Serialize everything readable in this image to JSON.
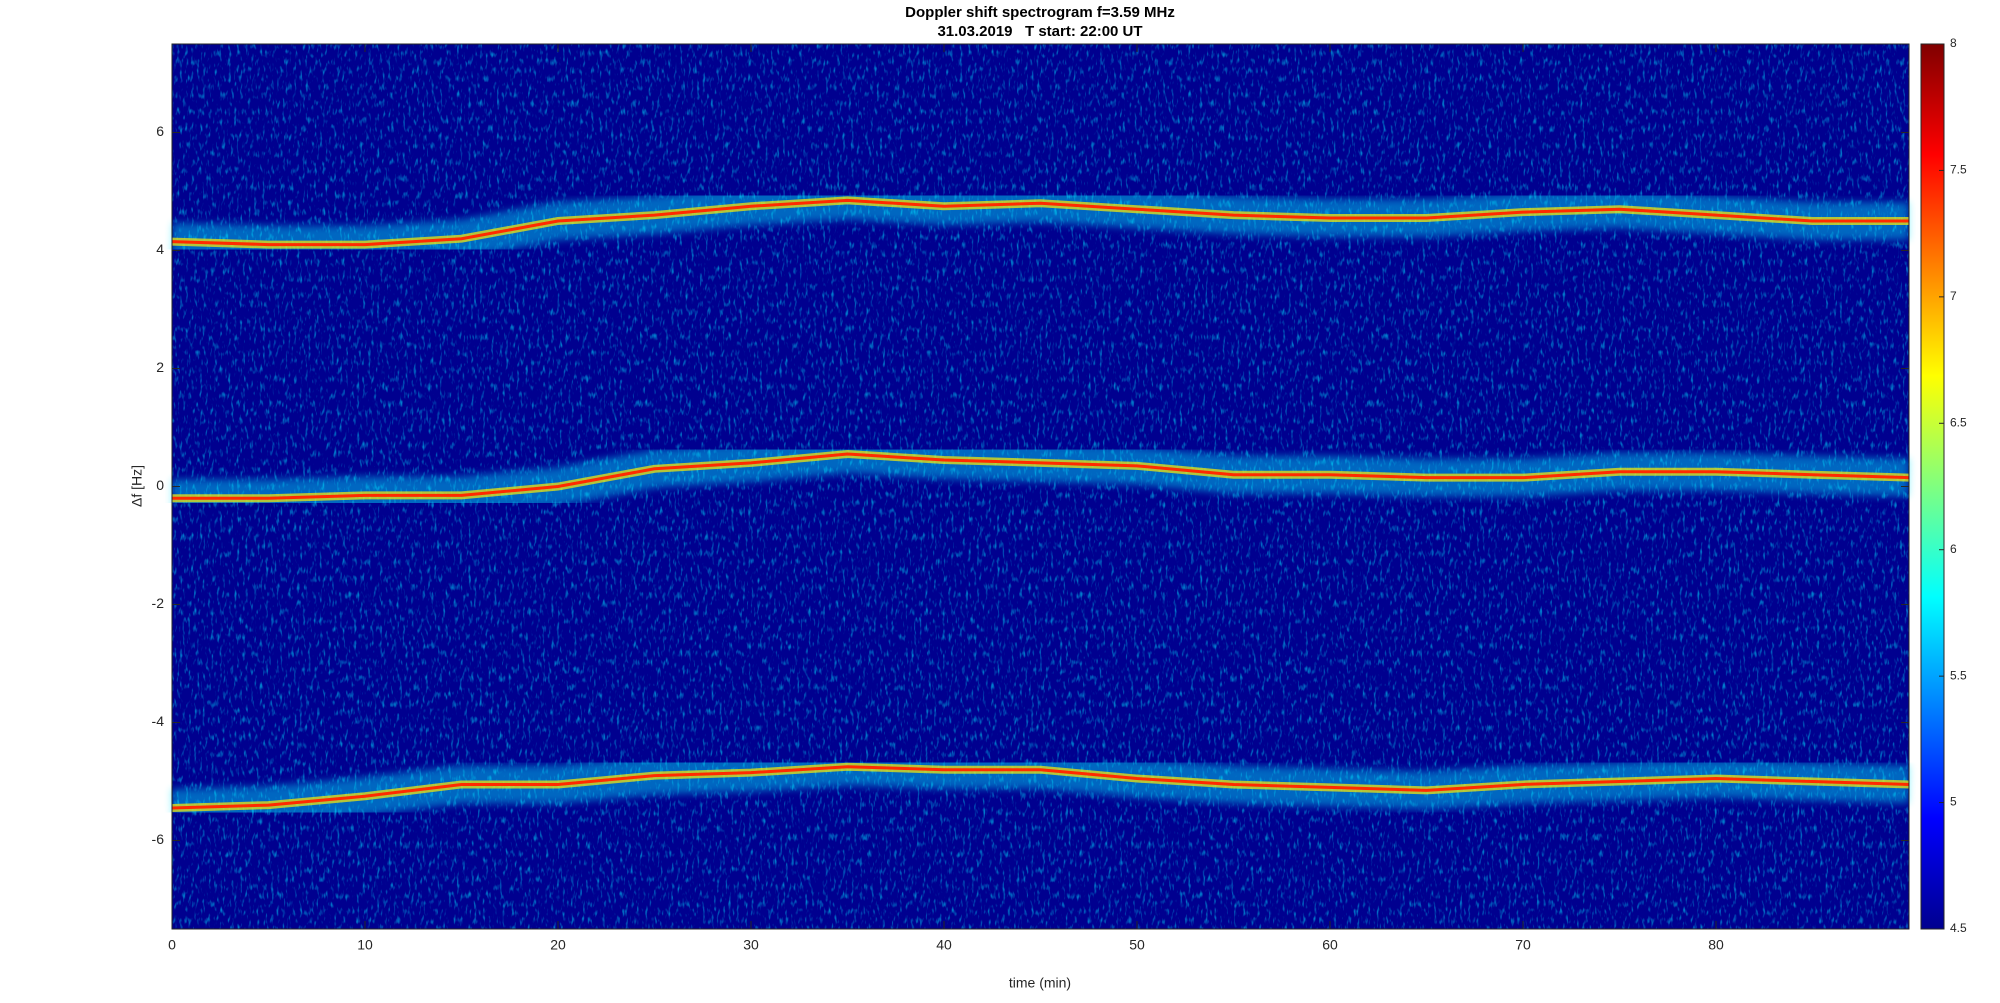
{
  "chart_data": {
    "type": "spectrogram",
    "title": "Doppler shift spectrogram f=3.59 MHz",
    "subtitle": "31.03.2019   T start: 22:00 UT",
    "x_label": "time (min)",
    "y_label": "Δf [Hz]",
    "xlim": [
      0,
      90
    ],
    "xticks": [
      0,
      10,
      20,
      30,
      40,
      50,
      60,
      70,
      80
    ],
    "ylim": [
      -7.5,
      7.5
    ],
    "yticks": [
      -6,
      -4,
      -2,
      0,
      2,
      4,
      6
    ],
    "colormap": "jet",
    "clim": [
      4.5,
      8
    ],
    "cticks": [
      4.5,
      5,
      5.5,
      6,
      6.5,
      7,
      7.5,
      8
    ],
    "x": [
      0,
      5,
      10,
      15,
      20,
      25,
      30,
      35,
      40,
      45,
      50,
      55,
      60,
      65,
      70,
      75,
      80,
      85,
      90
    ],
    "series": [
      {
        "color": "#ff2a00",
        "values": [
          4.15,
          4.1,
          4.1,
          4.2,
          4.5,
          4.6,
          4.75,
          4.85,
          4.75,
          4.8,
          4.7,
          4.6,
          4.55,
          4.55,
          4.65,
          4.7,
          4.6,
          4.5,
          4.5
        ]
      },
      {
        "color": "#ff2a00",
        "values": [
          -0.2,
          -0.2,
          -0.15,
          -0.15,
          0,
          0.3,
          0.4,
          0.55,
          0.45,
          0.4,
          0.35,
          0.2,
          0.2,
          0.15,
          0.15,
          0.25,
          0.25,
          0.2,
          0.15
        ]
      },
      {
        "color": "#ff2a00",
        "values": [
          -5.45,
          -5.4,
          -5.25,
          -5.05,
          -5.05,
          -4.9,
          -4.85,
          -4.75,
          -4.8,
          -4.8,
          -4.95,
          -5.05,
          -5.1,
          -5.15,
          -5.05,
          -5.0,
          -4.95,
          -5.0,
          -5.05
        ]
      }
    ]
  }
}
